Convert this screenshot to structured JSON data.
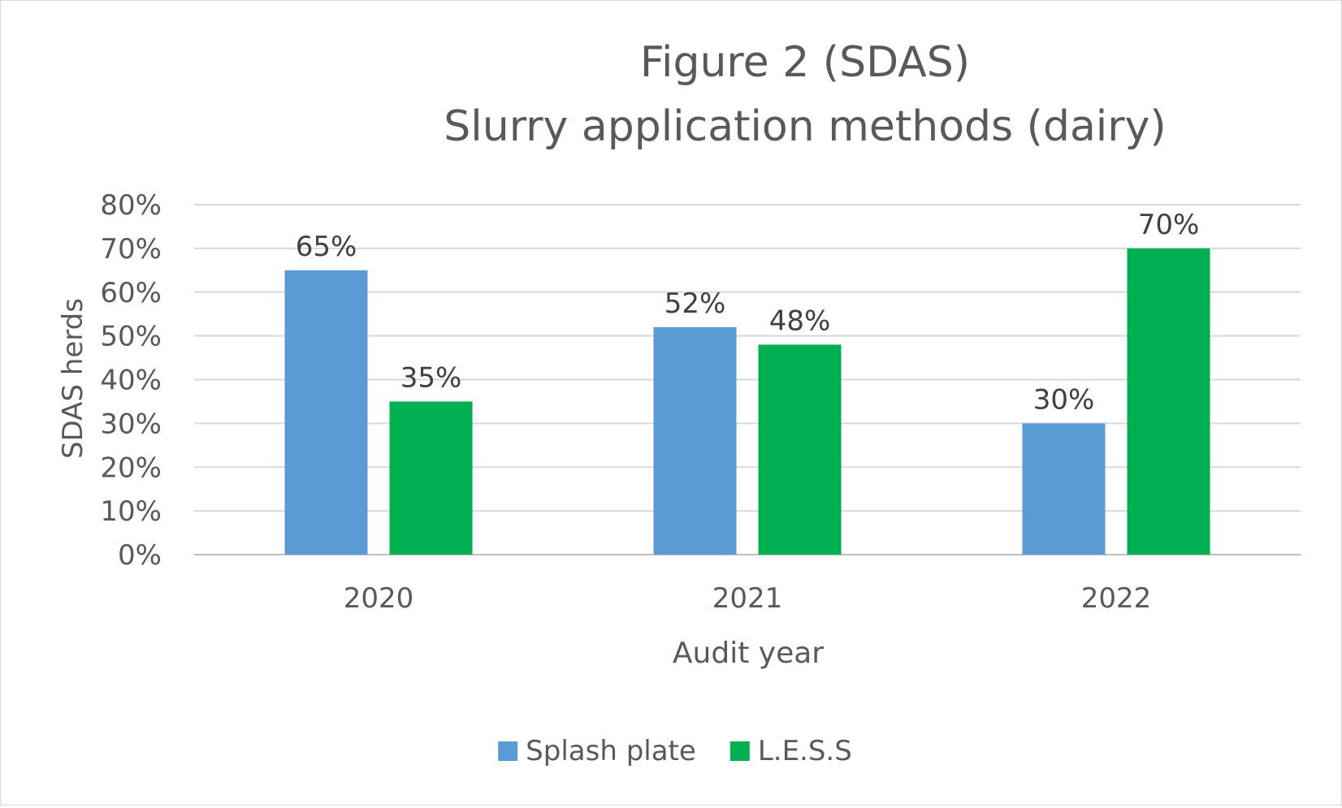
{
  "chart_data": {
    "type": "bar",
    "title": [
      "Figure 2 (SDAS)",
      "Slurry application methods (dairy)"
    ],
    "xlabel": "Audit year",
    "ylabel": "SDAS herds",
    "categories": [
      "2020",
      "2021",
      "2022"
    ],
    "series": [
      {
        "name": "Splash plate",
        "color": "#5b9bd5",
        "values": [
          65,
          52,
          30
        ]
      },
      {
        "name": "L.E.S.S",
        "color": "#00b050",
        "values": [
          35,
          48,
          70
        ]
      }
    ],
    "data_label_suffix": "%",
    "ylim": [
      0,
      80
    ],
    "yticks": [
      "0%",
      "10%",
      "20%",
      "30%",
      "40%",
      "50%",
      "60%",
      "70%",
      "80%"
    ],
    "grid": true,
    "legend_position": "bottom"
  }
}
